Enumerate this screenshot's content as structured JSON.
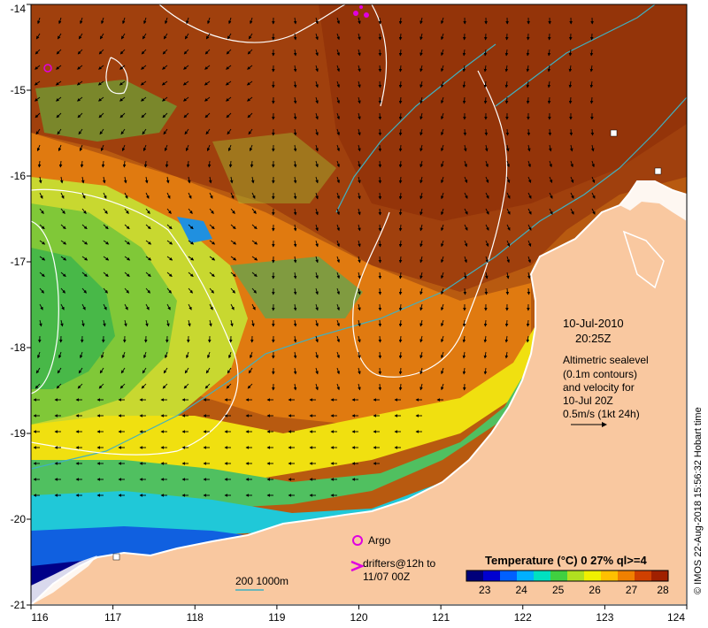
{
  "chart_data": {
    "type": "heatmap",
    "x_ticks": [
      "116",
      "117",
      "118",
      "119",
      "120",
      "121",
      "122",
      "123",
      "124"
    ],
    "y_ticks": [
      "-14",
      "-15",
      "-16",
      "-17",
      "-18",
      "-19",
      "-20",
      "-21"
    ],
    "xlim": [
      116,
      124
    ],
    "ylim": [
      -21,
      -14
    ],
    "date": "10-Jul-2010",
    "time": "20:25Z",
    "altimetry_note": [
      "Altimetric sealevel",
      "(0.1m contours)",
      "and velocity for",
      "10-Jul 20Z",
      "0.5m/s (1kt 24h)"
    ],
    "colorbar": {
      "title": "Temperature (°C) 0 27% ql>=4",
      "ticks": [
        "23",
        "24",
        "25",
        "26",
        "27",
        "28"
      ],
      "range": [
        22.5,
        28
      ],
      "colors": [
        "#00007a",
        "#0000d0",
        "#0060ff",
        "#00b0ff",
        "#00e0c0",
        "#40d040",
        "#b0e020",
        "#f0f000",
        "#ffc000",
        "#f08000",
        "#d04000",
        "#a02000"
      ]
    },
    "legend": {
      "argo": "Argo",
      "drifters_line1": "drifters@12h to",
      "drifters_line2": "11/07 00Z",
      "bathymetry": "200   1000m"
    },
    "credit": "© IMOS 22-Aug-2018 15:56:32 Hobart time"
  }
}
